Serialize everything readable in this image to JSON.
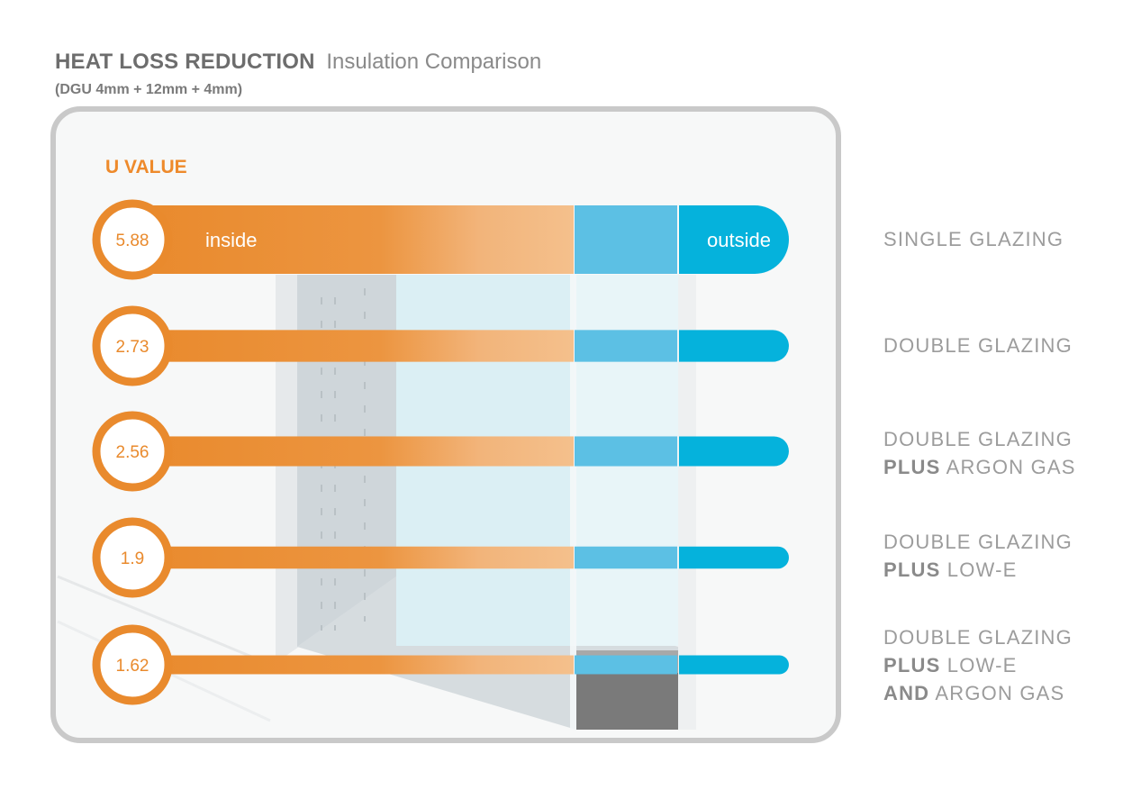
{
  "header": {
    "title": "HEAT LOSS REDUCTION",
    "subtitle": "Insulation Comparison",
    "note": "(DGU 4mm + 12mm + 4mm)"
  },
  "colors": {
    "orange": "#e98a2d",
    "orange_light": "#f3bf8a",
    "blue_mid": "#5cc0e4",
    "blue": "#05b2dc",
    "frame": "#c8c8c8",
    "label_grey": "#9c9c9c"
  },
  "chart_data": {
    "type": "bar",
    "ylabel": "U VALUE",
    "bar_inside_label": "inside",
    "bar_outside_label": "outside",
    "categories": [
      [
        "SINGLE GLAZING"
      ],
      [
        "DOUBLE GLAZING"
      ],
      [
        "DOUBLE GLAZING",
        "PLUS|ARGON GAS"
      ],
      [
        "DOUBLE GLAZING",
        "PLUS|LOW-E"
      ],
      [
        "DOUBLE GLAZING",
        "PLUS|LOW-E",
        "AND|ARGON GAS"
      ]
    ],
    "values": [
      5.88,
      2.73,
      2.56,
      1.9,
      1.62
    ],
    "value_labels": [
      "5.88",
      "2.73",
      "2.56",
      "1.9",
      "1.62"
    ]
  }
}
